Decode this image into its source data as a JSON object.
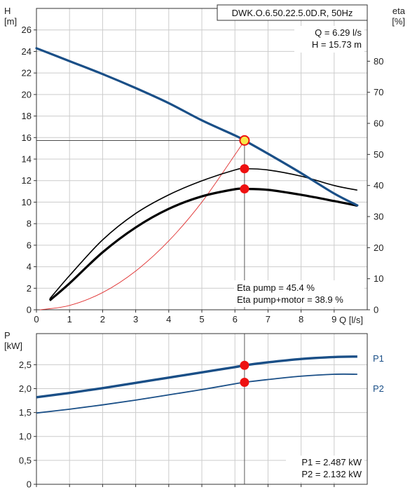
{
  "colors": {
    "head": "#1a4f87",
    "p1": "#1a4f87",
    "p2": "#1a4f87",
    "eta": "#000000",
    "system": "#e03030",
    "point": "#ee1111",
    "op_fill": "#f7e84a",
    "grid": "#cccccc"
  },
  "chart_data": [
    {
      "type": "line",
      "title": "DWK.O.6.50.22.5.0D.R, 50Hz",
      "xlabel": "Q [l/s]",
      "ylabel_left_name": "H",
      "ylabel_left_unit": "[m]",
      "ylabel_right_name": "eta",
      "ylabel_right_unit": "[%]",
      "xlim": [
        0,
        10
      ],
      "ylim_left": [
        0,
        28
      ],
      "ylim_right": [
        0,
        97
      ],
      "x_ticks": [
        "0",
        "1",
        "2",
        "3",
        "4",
        "5",
        "6",
        "7",
        "8",
        "9"
      ],
      "y_left_ticks": [
        "0",
        "2",
        "4",
        "6",
        "8",
        "10",
        "12",
        "14",
        "16",
        "18",
        "20",
        "22",
        "24",
        "26"
      ],
      "y_right_ticks": [
        "0",
        "10",
        "20",
        "30",
        "40",
        "50",
        "60",
        "70",
        "80"
      ],
      "grid": true,
      "series": [
        {
          "key": "head",
          "axis": "left",
          "x": [
            0,
            1,
            2,
            3,
            4,
            5,
            6,
            6.29,
            7,
            8,
            9,
            9.7
          ],
          "y": [
            24.3,
            23.1,
            21.9,
            20.6,
            19.2,
            17.6,
            16.2,
            15.73,
            14.5,
            12.7,
            10.8,
            9.7
          ]
        },
        {
          "key": "eta_pump",
          "axis": "right",
          "x": [
            0.4,
            1,
            2,
            3,
            4,
            5,
            6,
            6.29,
            7,
            8,
            9,
            9.7
          ],
          "y": [
            3.5,
            11,
            22.5,
            31,
            37,
            41.5,
            45,
            45.4,
            45,
            43,
            40,
            38.5
          ]
        },
        {
          "key": "eta_pump_motor",
          "axis": "right",
          "x": [
            0.4,
            1,
            2,
            3,
            4,
            5,
            6,
            6.29,
            7,
            8,
            9,
            9.7
          ],
          "y": [
            3,
            8.5,
            18.5,
            26.5,
            32.5,
            36.5,
            38.8,
            38.9,
            38.6,
            37,
            35,
            33.5
          ]
        },
        {
          "key": "system",
          "axis": "left",
          "x": [
            0.1,
            1,
            2,
            3,
            4,
            5,
            6,
            6.29
          ],
          "y": [
            0,
            0.4,
            1.6,
            3.6,
            6.4,
            10,
            14.4,
            15.73
          ]
        }
      ],
      "operating_point": {
        "q": "Q = 6.29 l/s",
        "h": "H = 15.73 m",
        "x": 6.29,
        "y": 15.73
      },
      "efficiency_points": {
        "eta_pump": 45.4,
        "eta_pump_motor": 38.9
      },
      "efficiency_labels": {
        "eta_pump": "Eta pump = 45.4 %",
        "eta_pump_motor": "Eta pump+motor = 38.9 %"
      }
    },
    {
      "type": "line",
      "ylabel_name": "P",
      "ylabel_unit": "[kW]",
      "xlim": [
        0,
        10
      ],
      "ylim": [
        0,
        3.15
      ],
      "y_ticks": [
        "0",
        "0,5",
        "1,0",
        "1,5",
        "2,0",
        "2,5"
      ],
      "grid": true,
      "series": [
        {
          "name": "P1",
          "key": "p1",
          "x": [
            0,
            1,
            2,
            3,
            4,
            5,
            6,
            6.29,
            7,
            8,
            9,
            9.7
          ],
          "y": [
            1.82,
            1.91,
            2.01,
            2.12,
            2.23,
            2.34,
            2.45,
            2.487,
            2.55,
            2.62,
            2.66,
            2.67
          ]
        },
        {
          "name": "P2",
          "key": "p2",
          "x": [
            0,
            1,
            2,
            3,
            4,
            5,
            6,
            6.29,
            7,
            8,
            9,
            9.7
          ],
          "y": [
            1.49,
            1.57,
            1.66,
            1.76,
            1.87,
            1.98,
            2.1,
            2.132,
            2.19,
            2.26,
            2.3,
            2.3
          ]
        }
      ],
      "operating_points": {
        "p1": 2.487,
        "p2": 2.132
      },
      "values_labels": {
        "p1": "P1 = 2.487 kW",
        "p2": "P2 = 2.132 kW"
      }
    }
  ]
}
